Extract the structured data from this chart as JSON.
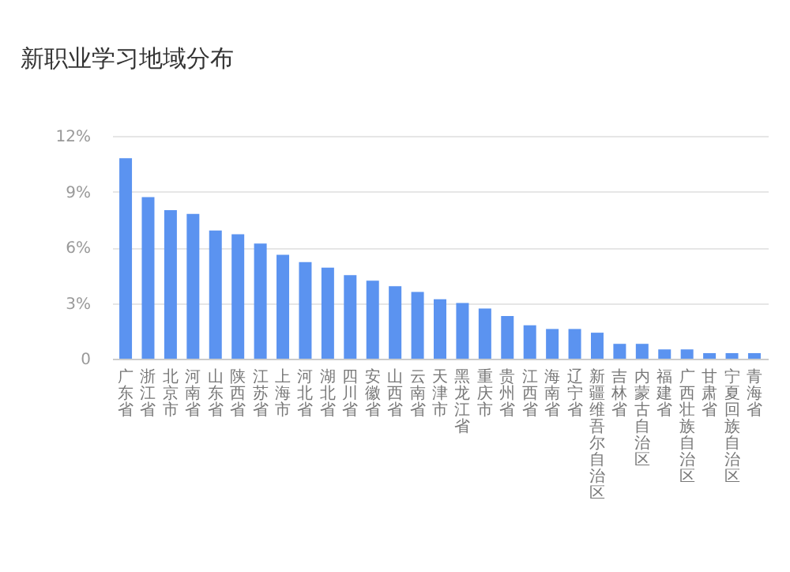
{
  "chart_data": {
    "type": "bar",
    "title": "新职业学习地域分布",
    "categories": [
      "广东省",
      "浙江省",
      "北京市",
      "河南省",
      "山东省",
      "陕西省",
      "江苏省",
      "上海市",
      "河北省",
      "湖北省",
      "四川省",
      "安徽省",
      "山西省",
      "云南省",
      "天津市",
      "黑龙江省",
      "重庆市",
      "贵州省",
      "江西省",
      "海南省",
      "辽宁省",
      "新疆维吾尔自治区",
      "吉林省",
      "内蒙古自治区",
      "福建省",
      "广西壮族自治区",
      "甘肃省",
      "宁夏回族自治区",
      "青海省"
    ],
    "values": [
      10.8,
      8.7,
      8.0,
      7.8,
      6.9,
      6.7,
      6.2,
      5.6,
      5.2,
      4.9,
      4.5,
      4.2,
      3.9,
      3.6,
      3.2,
      3.0,
      2.7,
      2.3,
      1.8,
      1.6,
      1.6,
      1.4,
      0.8,
      0.8,
      0.5,
      0.5,
      0.3,
      0.3,
      0.3
    ],
    "color": "#5b93f0",
    "ylim": [
      0,
      12
    ],
    "yticks": [
      {
        "value": 0,
        "label": "0"
      },
      {
        "value": 3,
        "label": "3%"
      },
      {
        "value": 6,
        "label": "6%"
      },
      {
        "value": 9,
        "label": "9%"
      },
      {
        "value": 12,
        "label": "12%"
      }
    ],
    "grid": "y"
  }
}
